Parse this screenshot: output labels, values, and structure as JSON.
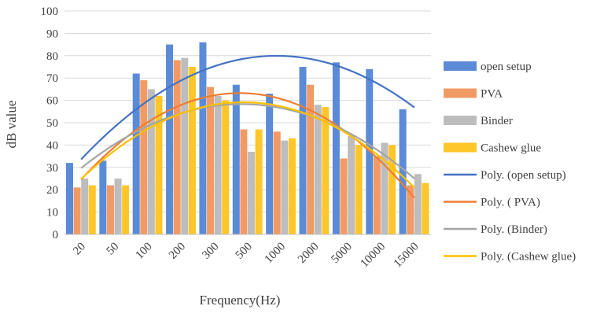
{
  "chart_data": {
    "type": "bar",
    "title": "",
    "xlabel": "Frequency(Hz)",
    "ylabel": "dB value",
    "ylim": [
      0,
      100
    ],
    "ytick_step": 10,
    "grid": true,
    "legend_position": "right",
    "categories": [
      "20",
      "50",
      "100",
      "200",
      "300",
      "500",
      "1000",
      "2000",
      "5000",
      "10000",
      "15000"
    ],
    "series": [
      {
        "name": "open setup",
        "color": "#5B8BD6",
        "values": [
          32,
          33,
          72,
          85,
          86,
          67,
          63,
          75,
          77,
          74,
          56
        ]
      },
      {
        "name": " PVA",
        "color": "#F29A64",
        "values": [
          21,
          22,
          69,
          78,
          66,
          47,
          46,
          67,
          34,
          35,
          22
        ]
      },
      {
        "name": "Binder",
        "color": "#BDBDBD",
        "values": [
          25,
          25,
          65,
          79,
          62,
          37,
          42,
          58,
          44,
          41,
          27
        ]
      },
      {
        "name": "Cashew glue",
        "color": "#FFC629",
        "values": [
          22,
          22,
          62,
          75,
          60,
          47,
          43,
          57,
          40,
          40,
          23
        ]
      }
    ],
    "trendlines": [
      {
        "name": "Poly. (open setup)",
        "color": "#4472C4",
        "type": "polynomial",
        "order": 2
      },
      {
        "name": "Poly. ( PVA)",
        "color": "#ED7D31",
        "type": "polynomial",
        "order": 2
      },
      {
        "name": "Poly. (Binder)",
        "color": "#A5A5A5",
        "type": "polynomial",
        "order": 2
      },
      {
        "name": "Poly. (Cashew glue)",
        "color": "#FFC000",
        "type": "polynomial",
        "order": 2
      }
    ]
  }
}
